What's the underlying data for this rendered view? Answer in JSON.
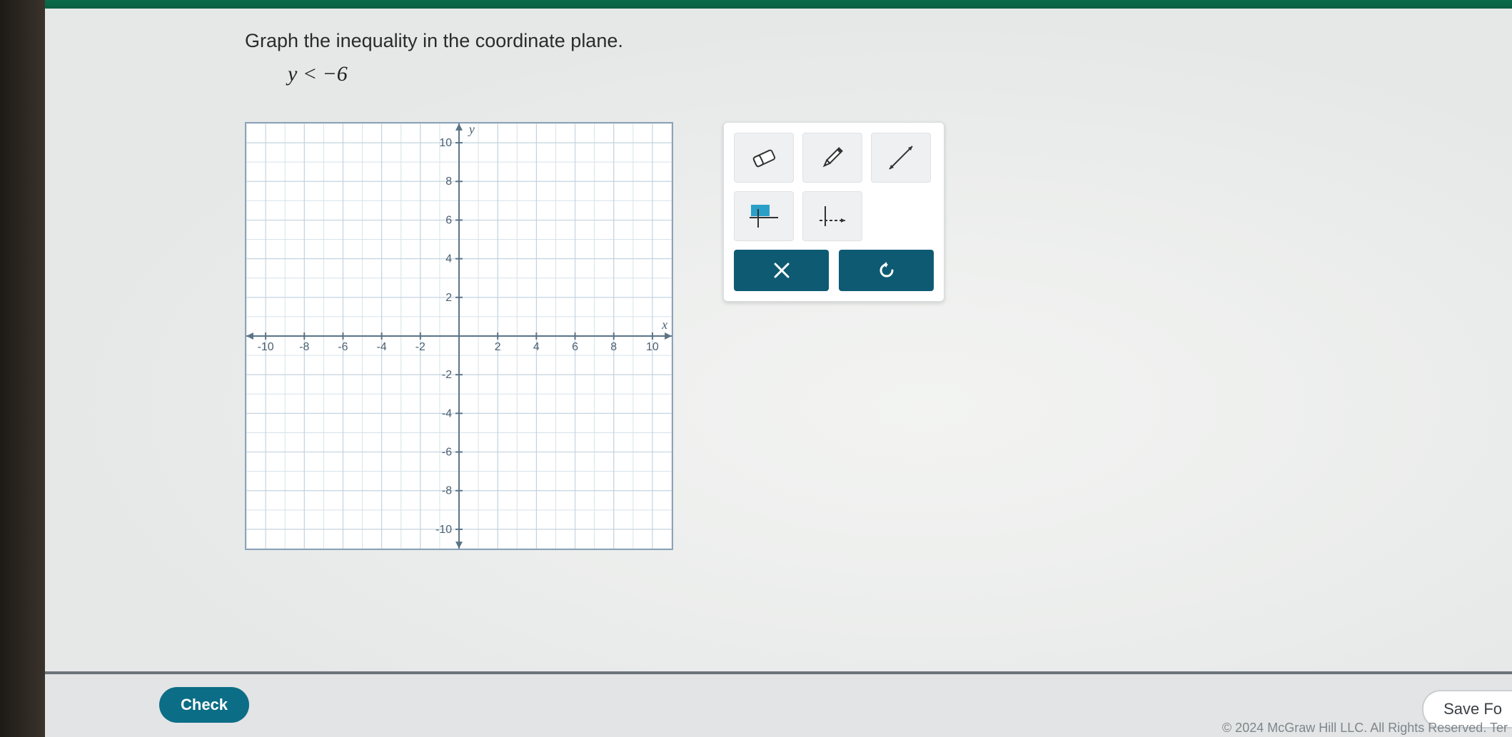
{
  "question": {
    "prompt": "Graph the inequality in the coordinate plane.",
    "inequality": "y < −6"
  },
  "graph": {
    "type": "coordinate-plane",
    "xlim": [
      -11,
      11
    ],
    "ylim": [
      -11,
      11
    ],
    "minor_step": 1,
    "tick_step": 2,
    "x_ticks": [
      -10,
      -8,
      -6,
      -4,
      -2,
      2,
      4,
      6,
      8,
      10
    ],
    "y_ticks": [
      10,
      8,
      6,
      4,
      2,
      -2,
      -4,
      -6,
      -8,
      -10
    ],
    "x_axis_label": "x",
    "y_axis_label": "y",
    "background_color": "#ffffff",
    "grid_minor_color": "#d7e2ea",
    "grid_major_color": "#bfcfdb",
    "axis_color": "#5a7386",
    "tick_font_size": 16,
    "axis_label_font_size": 18
  },
  "tools": {
    "row1": [
      {
        "name": "eraser-tool",
        "icon": "eraser"
      },
      {
        "name": "pencil-tool",
        "icon": "pencil"
      },
      {
        "name": "line-tool",
        "icon": "line"
      }
    ],
    "row2": [
      {
        "name": "fill-region-tool",
        "icon": "fill",
        "selected": false
      },
      {
        "name": "dashed-line-tool",
        "icon": "dashed"
      }
    ],
    "actions": {
      "clear": {
        "name": "clear-button",
        "icon": "x"
      },
      "reset": {
        "name": "reset-button",
        "icon": "undo"
      }
    }
  },
  "footer": {
    "check_label": "Check",
    "save_label": "Save Fo",
    "copyright": "© 2024 McGraw Hill LLC. All Rights Reserved.   Ter"
  },
  "colors": {
    "accent_teal": "#0b6d86",
    "panel_bg": "#ecedee",
    "tool_btn_bg": "#eef0f1",
    "action_btn_bg": "#0e5a72"
  }
}
